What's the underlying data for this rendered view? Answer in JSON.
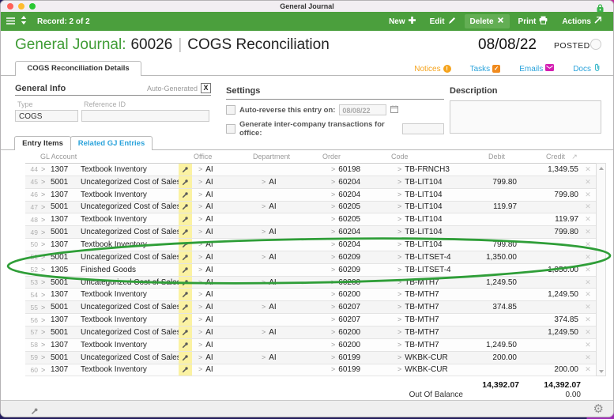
{
  "window": {
    "title": "General Journal"
  },
  "titlebar": {
    "traffic_lights": [
      "close",
      "minimize",
      "zoom"
    ],
    "lock_icon": "lock"
  },
  "toolbar": {
    "record_label": "Record: 2 of 2",
    "buttons": [
      {
        "label": "New",
        "icon": "plus-icon"
      },
      {
        "label": "Edit",
        "icon": "pencil-icon"
      },
      {
        "label": "Delete",
        "icon": "x-icon",
        "highlighted": true
      },
      {
        "label": "Print",
        "icon": "printer-icon"
      },
      {
        "label": "Actions",
        "icon": "arrow-up-right-icon"
      }
    ]
  },
  "header": {
    "module": "General Journal:",
    "record_id": "60026",
    "separator": "|",
    "record_title": "COGS Reconciliation",
    "date": "08/08/22",
    "status_label": "POSTED"
  },
  "detail_tab": {
    "label": "COGS Reconciliation Details"
  },
  "quick_links": [
    {
      "label": "Notices",
      "badge": "!"
    },
    {
      "label": "Tasks",
      "badge": "check"
    },
    {
      "label": "Emails",
      "badge": "envelope"
    },
    {
      "label": "Docs",
      "badge": "paperclip"
    }
  ],
  "general_info": {
    "heading": "General Info",
    "auto_generated_label": "Auto-Generated",
    "auto_generated_checked": "X",
    "type_label": "Type",
    "type_value": "COGS",
    "reference_label": "Reference ID",
    "reference_value": ""
  },
  "settings": {
    "heading": "Settings",
    "auto_reverse_label": "Auto-reverse this entry on:",
    "auto_reverse_date": "08/08/22",
    "auto_reverse_checked": false,
    "intercompany_label": "Generate inter-company transactions for office:",
    "intercompany_value": "",
    "intercompany_checked": false
  },
  "description": {
    "heading": "Description",
    "value": ""
  },
  "entry_tabs": {
    "active": "Entry Items",
    "inactive": "Related GJ Entries"
  },
  "table": {
    "columns": [
      "GL Account",
      "Office",
      "Department",
      "Order",
      "Code",
      "Debit",
      "Credit"
    ],
    "rows": [
      {
        "num": "44",
        "account": "1307",
        "name": "Textbook Inventory",
        "office": "AI",
        "dept": "",
        "order": "60198",
        "code": "TB-FRNCH3",
        "debit": "",
        "credit": "1,349.55"
      },
      {
        "num": "45",
        "account": "5001",
        "name": "Uncategorized Cost of Sales",
        "office": "AI",
        "dept": "AI",
        "order": "60204",
        "code": "TB-LIT104",
        "debit": "799.80",
        "credit": ""
      },
      {
        "num": "46",
        "account": "1307",
        "name": "Textbook Inventory",
        "office": "AI",
        "dept": "",
        "order": "60204",
        "code": "TB-LIT104",
        "debit": "",
        "credit": "799.80"
      },
      {
        "num": "47",
        "account": "5001",
        "name": "Uncategorized Cost of Sales",
        "office": "AI",
        "dept": "AI",
        "order": "60205",
        "code": "TB-LIT104",
        "debit": "119.97",
        "credit": ""
      },
      {
        "num": "48",
        "account": "1307",
        "name": "Textbook Inventory",
        "office": "AI",
        "dept": "",
        "order": "60205",
        "code": "TB-LIT104",
        "debit": "",
        "credit": "119.97"
      },
      {
        "num": "49",
        "account": "5001",
        "name": "Uncategorized Cost of Sales",
        "office": "AI",
        "dept": "AI",
        "order": "60204",
        "code": "TB-LIT104",
        "debit": "",
        "credit": "799.80"
      },
      {
        "num": "50",
        "account": "1307",
        "name": "Textbook Inventory",
        "office": "AI",
        "dept": "",
        "order": "60204",
        "code": "TB-LIT104",
        "debit": "799.80",
        "credit": ""
      },
      {
        "num": "51",
        "account": "5001",
        "name": "Uncategorized Cost of Sales",
        "office": "AI",
        "dept": "AI",
        "order": "60209",
        "code": "TB-LITSET-4",
        "debit": "1,350.00",
        "credit": ""
      },
      {
        "num": "52",
        "account": "1305",
        "name": "Finished Goods",
        "office": "AI",
        "dept": "",
        "order": "60209",
        "code": "TB-LITSET-4",
        "debit": "",
        "credit": "1,350.00"
      },
      {
        "num": "53",
        "account": "5001",
        "name": "Uncategorized Cost of Sales",
        "office": "AI",
        "dept": "AI",
        "order": "60200",
        "code": "TB-MTH7",
        "debit": "1,249.50",
        "credit": ""
      },
      {
        "num": "54",
        "account": "1307",
        "name": "Textbook Inventory",
        "office": "AI",
        "dept": "",
        "order": "60200",
        "code": "TB-MTH7",
        "debit": "",
        "credit": "1,249.50"
      },
      {
        "num": "55",
        "account": "5001",
        "name": "Uncategorized Cost of Sales",
        "office": "AI",
        "dept": "AI",
        "order": "60207",
        "code": "TB-MTH7",
        "debit": "374.85",
        "credit": ""
      },
      {
        "num": "56",
        "account": "1307",
        "name": "Textbook Inventory",
        "office": "AI",
        "dept": "",
        "order": "60207",
        "code": "TB-MTH7",
        "debit": "",
        "credit": "374.85"
      },
      {
        "num": "57",
        "account": "5001",
        "name": "Uncategorized Cost of Sales",
        "office": "AI",
        "dept": "AI",
        "order": "60200",
        "code": "TB-MTH7",
        "debit": "",
        "credit": "1,249.50"
      },
      {
        "num": "58",
        "account": "1307",
        "name": "Textbook Inventory",
        "office": "AI",
        "dept": "",
        "order": "60200",
        "code": "TB-MTH7",
        "debit": "1,249.50",
        "credit": ""
      },
      {
        "num": "59",
        "account": "5001",
        "name": "Uncategorized Cost of Sales",
        "office": "AI",
        "dept": "AI",
        "order": "60199",
        "code": "WKBK-CUR",
        "debit": "200.00",
        "credit": ""
      },
      {
        "num": "60",
        "account": "1307",
        "name": "Textbook Inventory",
        "office": "AI",
        "dept": "",
        "order": "60199",
        "code": "WKBK-CUR",
        "debit": "",
        "credit": "200.00"
      }
    ],
    "totals": {
      "debit": "14,392.07",
      "credit": "14,392.07",
      "out_of_balance_label": "Out Of Balance",
      "out_of_balance_value": "0.00"
    }
  },
  "annotation": {
    "shape": "hand-drawn ellipse circling rows 51-52",
    "color": "#2f9e38"
  },
  "colors": {
    "toolbar_green": "#4b9f3d",
    "title_green": "#3f9c35",
    "pin_highlight": "#fbf2a2",
    "link_orange": "#f5a31c",
    "link_blue": "#2ba3db",
    "emails_magenta": "#d41fb2",
    "docs_teal": "#35b6c9",
    "annotation_green": "#2f9e38",
    "desktop_navy": "#241d5e"
  }
}
